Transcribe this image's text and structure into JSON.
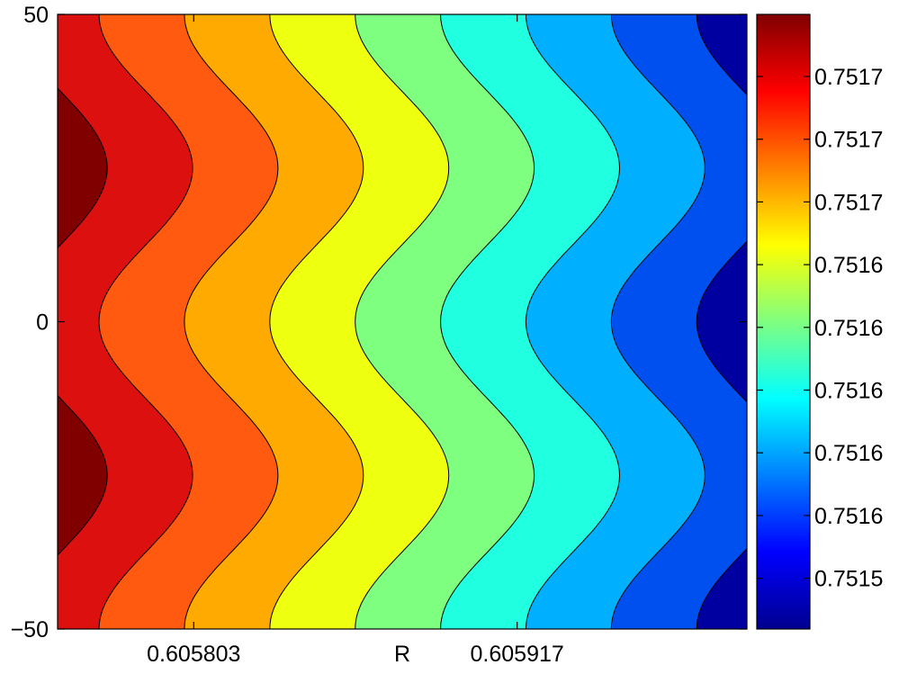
{
  "chart_data": {
    "type": "contour",
    "title": "",
    "xlabel": "R",
    "ylabel": "",
    "x_ticks": [
      {
        "x": 0.605803,
        "label": "0.605803"
      },
      {
        "x": 0.605917,
        "label": "0.605917"
      }
    ],
    "xlim": [
      0.605755,
      0.605998
    ],
    "ylim": [
      -50,
      50
    ],
    "y_ticks": [
      {
        "y": 50,
        "label": "50"
      },
      {
        "y": 0,
        "label": "0"
      },
      {
        "y": -50,
        "label": "−50"
      }
    ],
    "field": {
      "description_of_levels": "levels decrease left to right; two horizontal wave periods",
      "level_count": 8,
      "wave_period_y": 50,
      "wave_amplitude_x": 1.65e-05,
      "level_spacing_x": 3.01e-05,
      "first_boundary_x_at_wave_center": 0.605756
    },
    "band_colors": [
      "#800000",
      "#dd1010",
      "#ff5a10",
      "#ffaa00",
      "#eeff10",
      "#7fff7f",
      "#20ffe0",
      "#00b0ff",
      "#0050f0",
      "#0000a0"
    ],
    "colorbar": {
      "tick_labels": [
        "0.7517",
        "0.7517",
        "0.7517",
        "0.7516",
        "0.7516",
        "0.7516",
        "0.7516",
        "0.7516",
        "0.7515"
      ],
      "colormap": "jet"
    }
  }
}
